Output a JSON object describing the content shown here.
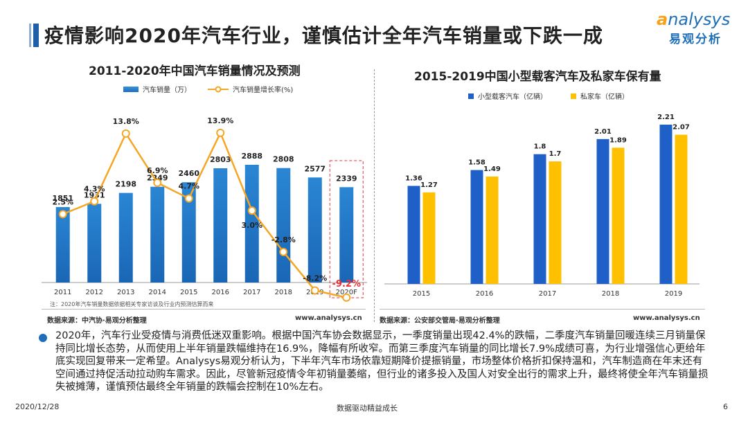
{
  "header": {
    "title": "疫情影响2020年汽车行业，谨慎估计全年汽车销量或下跌一成",
    "logo_en": "nalysys",
    "logo_en_initial": "a",
    "logo_cn": "易观分析"
  },
  "colors": {
    "bar_blue": "#1f78c8",
    "line_orange": "#f5a623",
    "gold": "#ffc000",
    "dark_blue": "#1f5fc8",
    "highlight_red": "#e8303a"
  },
  "chart_data": [
    {
      "type": "bar",
      "title": "2011-2020年中国汽车销量情况及预测",
      "categories": [
        "2011",
        "2012",
        "2013",
        "2014",
        "2015",
        "2016",
        "2017",
        "2018",
        "2019",
        "2020F"
      ],
      "series": [
        {
          "name": "汽车销量（万）",
          "type": "bar",
          "values": [
            1851,
            1931,
            2198,
            2349,
            2460,
            2803,
            2888,
            2808,
            2577,
            2339
          ]
        },
        {
          "name": "汽车销量增长率(%)",
          "type": "line",
          "values": [
            2.5,
            4.3,
            13.8,
            6.9,
            4.7,
            13.9,
            3.0,
            -2.8,
            -8.2,
            -9.2
          ],
          "labels": [
            "2.5%",
            "4.3%",
            "13.8%",
            "6.9%",
            "4.7%",
            "13.9%",
            "3.0%",
            "-2.8%",
            "-8.2%",
            "-9.2%"
          ]
        }
      ],
      "highlight": "2020F",
      "note": "注：2020年汽车销量数据依据相关专家访谈及行业内预测估算而来",
      "source": "数据来源：中汽协·易观分析整理",
      "url": "www.analysys.cn"
    },
    {
      "type": "bar",
      "title": "2015-2019中国小型载客汽车及私家车保有量",
      "categories": [
        "2015",
        "2016",
        "2017",
        "2018",
        "2019"
      ],
      "series": [
        {
          "name": "小型载客汽车（亿辆）",
          "values": [
            1.36,
            1.58,
            1.8,
            2.01,
            2.21
          ],
          "labels": [
            "1.36",
            "1.58",
            "1.8",
            "2.01",
            "2.21"
          ]
        },
        {
          "name": "私家车（亿辆）",
          "values": [
            1.27,
            1.49,
            1.7,
            1.89,
            2.07
          ],
          "labels": [
            "1.27",
            "1.49",
            "1.7",
            "1.89",
            "2.07"
          ]
        }
      ],
      "source": "数据来源：公安部交管局·易观分析整理",
      "url": "www.analysys.cn"
    }
  ],
  "body": "2020年，汽车行业受疫情与消费低迷双重影响。根据中国汽车协会数据显示，一季度销量出现42.4%的跌幅，二季度汽车销量回暖连续三月销量保持同比增长态势，从而使用上半年销量跌幅维持在16.9%，降幅有所收窄。而第三季度汽车销量的同比增长7.9%成绩可喜，为行业增强信心更给年底实现回复带来一定希望。Analysys易观分析认为，下半年汽车市场依靠短期降价提振销量，市场整体价格折扣保持温和，汽车制造商在年末还有空间通过持促活动拉动购车需求。因此，尽管新冠疫情令年初销量萎缩，但行业的诸多投入及国人对安全出行的需求上升，最终将使全年汽车销量损失被摊薄，谨慎预估最终全年销量的跌幅会控制在10%左右。",
  "footer": {
    "date": "2020/12/28",
    "slogan": "数据驱动精益成长",
    "page": "6"
  }
}
